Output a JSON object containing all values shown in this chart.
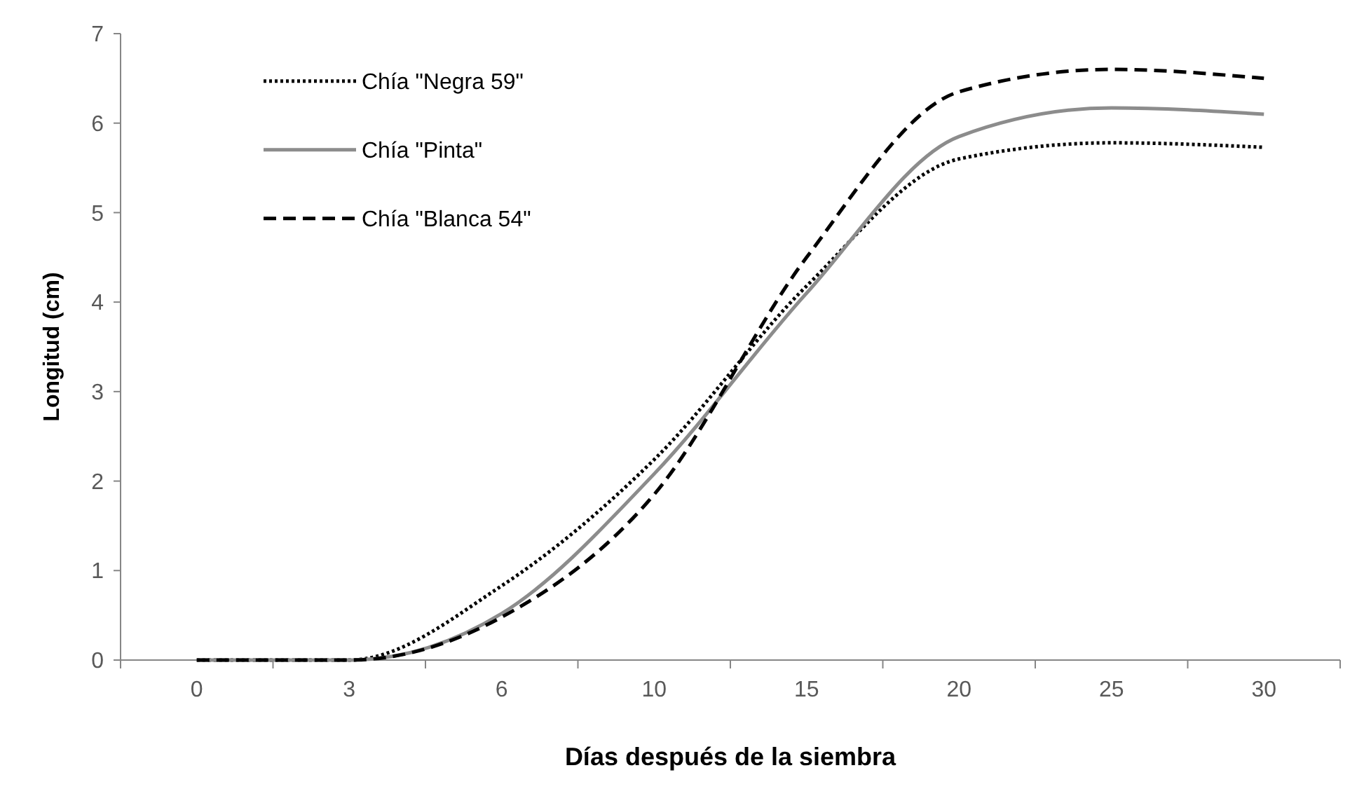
{
  "chart_data": {
    "type": "line",
    "xlabel": "Días después de la siembra",
    "ylabel": "Longitud  (cm)",
    "categories": [
      "0",
      "3",
      "6",
      "10",
      "15",
      "20",
      "25",
      "30"
    ],
    "series": [
      {
        "name": "Chía \"Negra 59\"",
        "color": "#000000",
        "line_style": "dotted",
        "values": [
          0,
          0,
          0.83,
          2.24,
          4.18,
          5.6,
          5.78,
          5.73
        ]
      },
      {
        "name": "Chía \"Pinta\"",
        "color": "#8c8c8c",
        "line_style": "solid",
        "values": [
          0,
          0,
          0.52,
          2.08,
          4.1,
          5.85,
          6.17,
          6.1
        ]
      },
      {
        "name": "Chía \"Blanca 54\"",
        "color": "#000000",
        "line_style": "dashed",
        "values": [
          0,
          0,
          0.48,
          1.85,
          4.5,
          6.35,
          6.6,
          6.5
        ]
      }
    ],
    "ylim": [
      0,
      7
    ],
    "yticks": [
      0,
      1,
      2,
      3,
      4,
      5,
      6,
      7
    ],
    "grid": false,
    "legend": "top left",
    "marker": "none"
  }
}
